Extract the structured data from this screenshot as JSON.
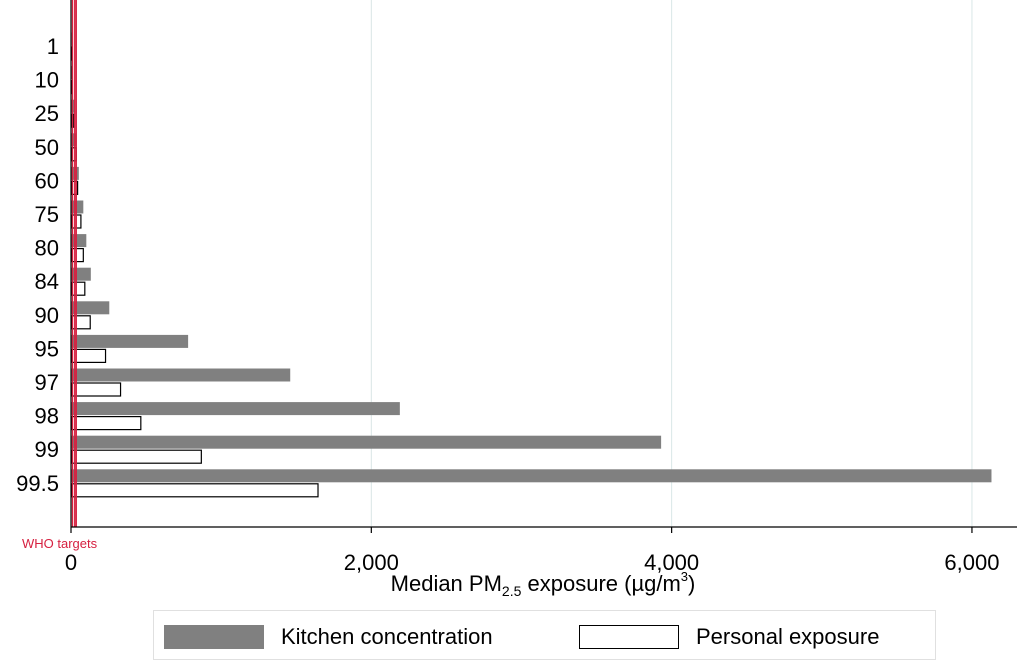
{
  "chart_data": {
    "type": "bar",
    "orientation": "horizontal",
    "categories": [
      "1",
      "10",
      "25",
      "50",
      "60",
      "75",
      "80",
      "84",
      "90",
      "95",
      "97",
      "98",
      "99",
      "99.5"
    ],
    "series": [
      {
        "name": "Kitchen concentration",
        "color": "#808080",
        "values": [
          5,
          12,
          25,
          38,
          52,
          82,
          102,
          132,
          255,
          780,
          1460,
          2190,
          3930,
          6130
        ]
      },
      {
        "name": "Personal exposure",
        "color": "#ffffff",
        "values": [
          3,
          8,
          18,
          36,
          44,
          66,
          82,
          92,
          128,
          230,
          330,
          465,
          868,
          1645
        ]
      }
    ],
    "xlim": [
      0,
      6300
    ],
    "x_ticks": [
      "0",
      "2,000",
      "4,000",
      "6,000"
    ],
    "x_tick_values": [
      0,
      2000,
      4000,
      6000
    ],
    "xlabel": {
      "prefix": "Median PM",
      "subscript": "2.5",
      "suffix": " exposure (µg/m",
      "superscript": "3",
      "close": ")"
    },
    "reference_line": {
      "label": "WHO targets",
      "color": "#d62040",
      "values": [
        10,
        25,
        35
      ]
    },
    "grid": "vertical",
    "legend_position": "bottom"
  }
}
